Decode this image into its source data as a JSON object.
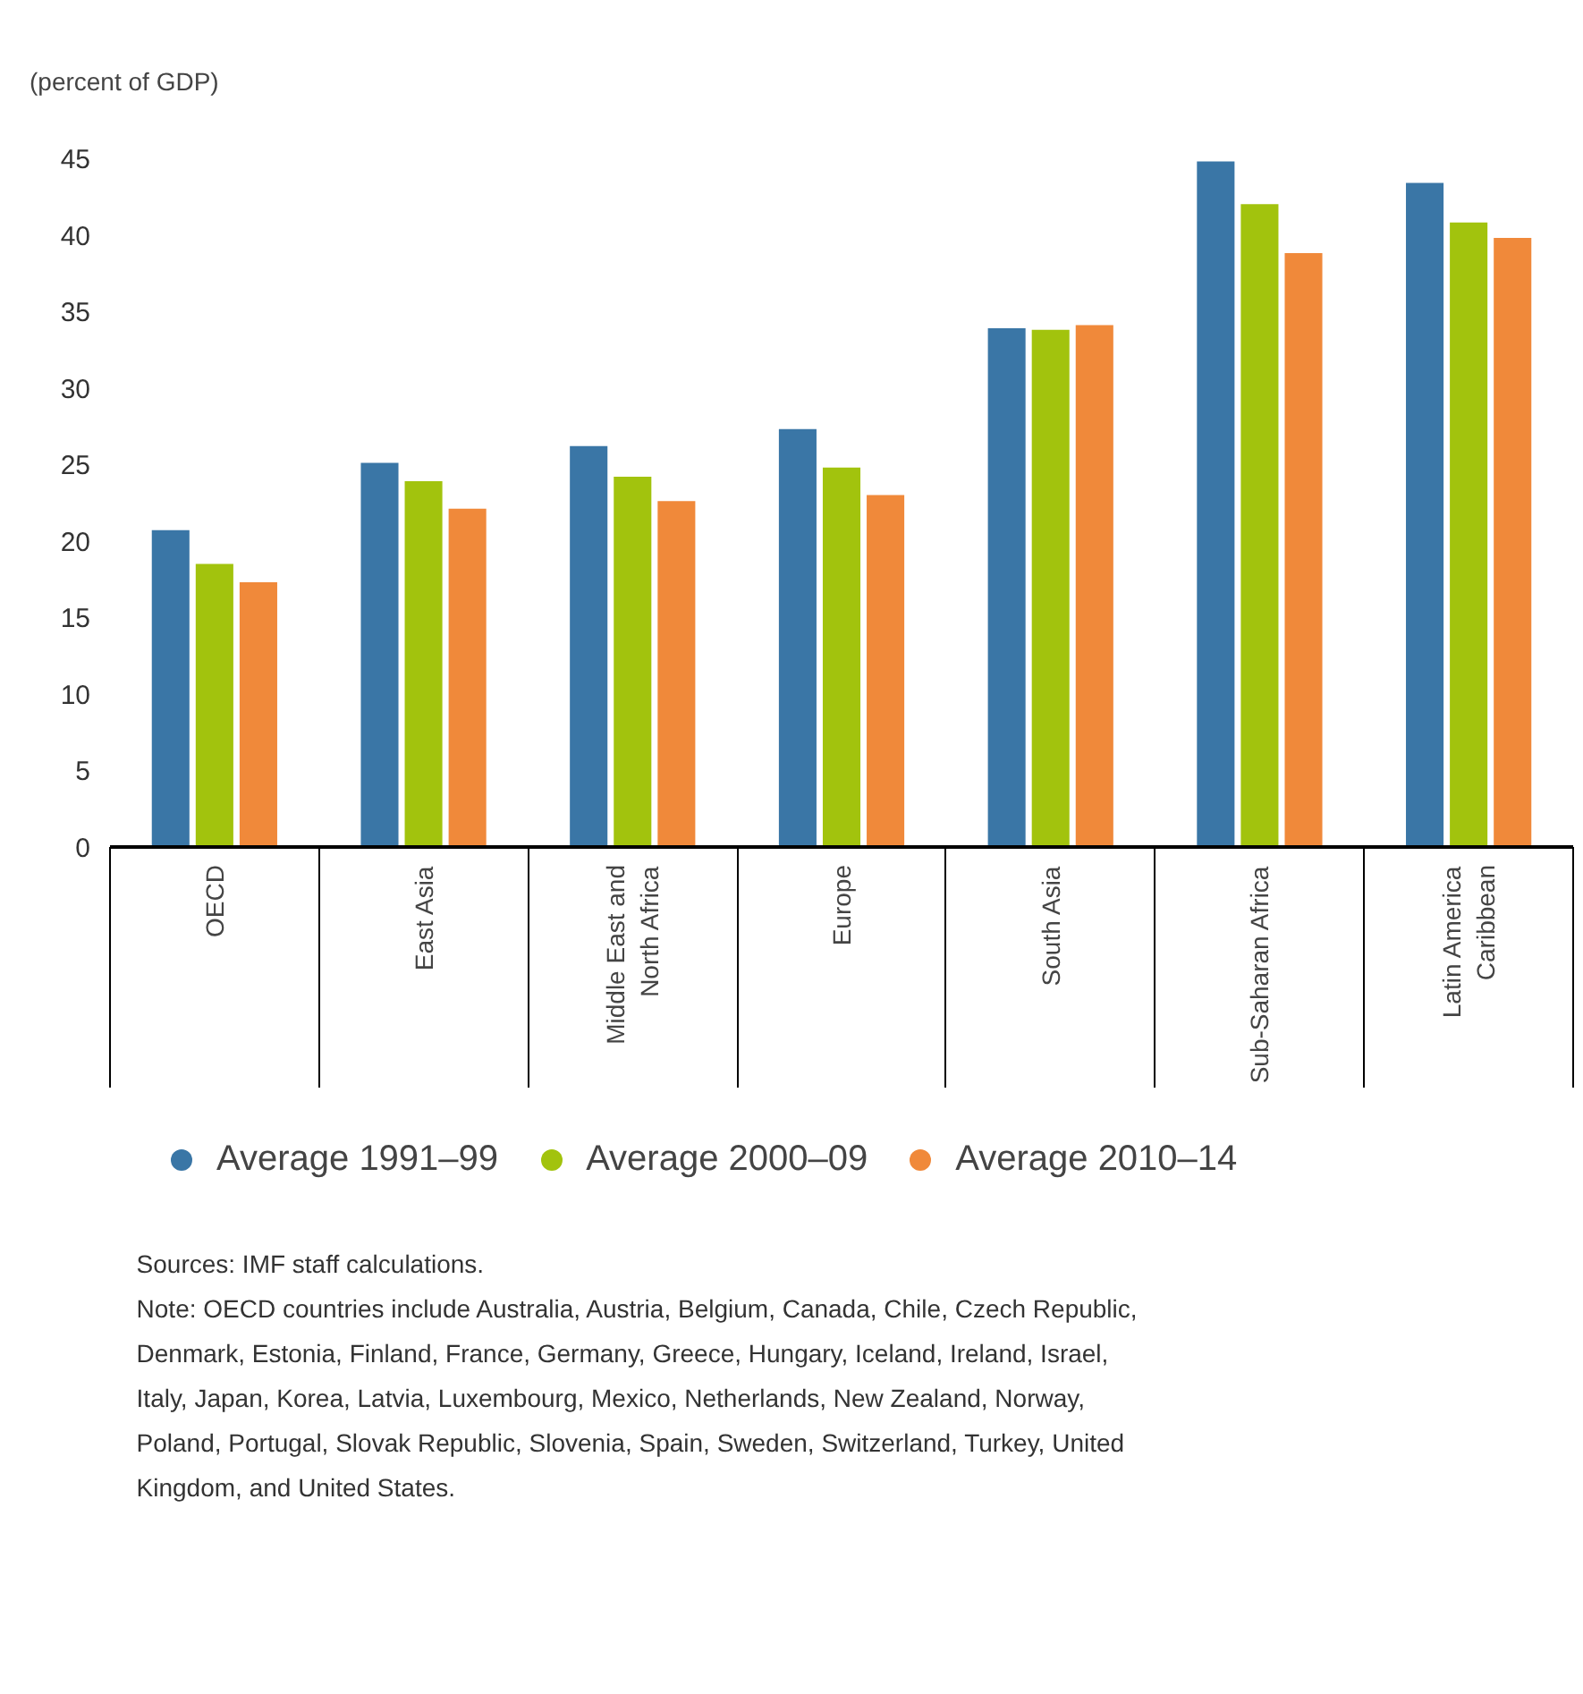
{
  "chart_data": {
    "type": "bar",
    "ylabel": "(percent of GDP)",
    "categories": [
      "OECD",
      "East Asia",
      "Middle East and\nNorth Africa",
      "Europe",
      "South Asia",
      "Sub-Saharan Africa",
      "Latin America\nCaribbean"
    ],
    "series": [
      {
        "name": "Average 1991–99",
        "color": "#3a76a6",
        "values": [
          20.7,
          25.1,
          26.2,
          27.3,
          33.9,
          44.8,
          43.4
        ]
      },
      {
        "name": "Average 2000–09",
        "color": "#a2c30d",
        "values": [
          18.5,
          23.9,
          24.2,
          24.8,
          33.8,
          42.0,
          40.8
        ]
      },
      {
        "name": "Average 2010–14",
        "color": "#f0893a",
        "values": [
          17.3,
          22.1,
          22.6,
          23.0,
          34.1,
          38.8,
          39.8
        ]
      }
    ],
    "ylim": [
      0,
      45
    ],
    "yticks": [
      0,
      5,
      10,
      15,
      20,
      25,
      30,
      35,
      40,
      45
    ],
    "grid": false,
    "legend": "bottom",
    "marker": "circle",
    "annotations": [
      "Sources: IMF staff calculations.",
      "Note: OECD countries include Australia, Austria, Belgium, Canada, Chile, Czech Republic, Denmark, Estonia, Finland, France, Germany, Greece, Hungary, Iceland, Ireland, Israel, Italy, Japan, Korea, Latvia, Luxembourg, Mexico, Netherlands, New Zealand, Norway, Poland, Portugal, Slovak Republic, Slovenia, Spain, Sweden, Switzerland, Turkey, United Kingdom, and United States."
    ]
  }
}
